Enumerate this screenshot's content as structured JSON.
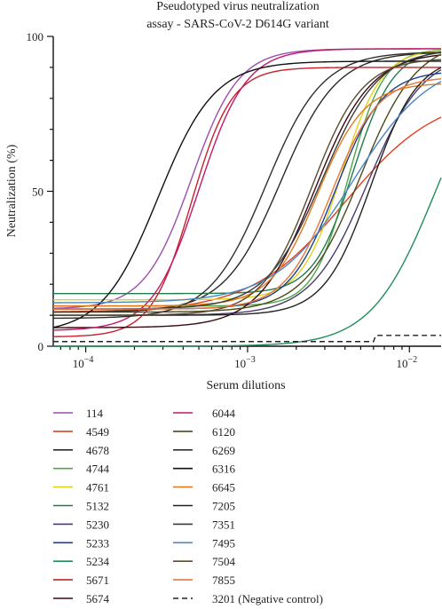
{
  "chart_data": {
    "type": "line",
    "title_lines": [
      "Pseudotyped virus neutralization",
      "assay - SARS-CoV-2 D614G variant"
    ],
    "xlabel": "Serum dilutions",
    "ylabel": "Neutralization (%)",
    "x_scale": "log",
    "xlim": [
      6.3e-05,
      0.0157
    ],
    "ylim": [
      0,
      100
    ],
    "x_ticks": [
      {
        "value": 0.0001,
        "base": "10",
        "exp": "−4"
      },
      {
        "value": 0.001,
        "base": "10",
        "exp": "−3"
      },
      {
        "value": 0.01,
        "base": "10",
        "exp": "−2"
      }
    ],
    "y_ticks": [
      {
        "value": 0,
        "label": "0"
      },
      {
        "value": 50,
        "label": "50"
      },
      {
        "value": 100,
        "label": "100"
      }
    ],
    "series": [
      {
        "name": "114",
        "color": "#9b4fb0",
        "bottom": 12,
        "top": 96,
        "ec50": 0.00045,
        "hill": 3.0
      },
      {
        "name": "4549",
        "color": "#e3401b",
        "bottom": 11,
        "top": 82,
        "ec50": 0.004,
        "hill": 1.5
      },
      {
        "name": "4678",
        "color": "#2a2a2a",
        "bottom": 11,
        "top": 95,
        "ec50": 0.0016,
        "hill": 2.5
      },
      {
        "name": "4744",
        "color": "#4da64a",
        "bottom": 13,
        "top": 96,
        "ec50": 0.0042,
        "hill": 4.0
      },
      {
        "name": "4761",
        "color": "#e0d21a",
        "bottom": 15,
        "top": 96,
        "ec50": 0.0038,
        "hill": 3.5
      },
      {
        "name": "5132",
        "color": "#207c4a",
        "bottom": 17,
        "top": 96,
        "ec50": 0.0045,
        "hill": 3.5
      },
      {
        "name": "5230",
        "color": "#4a3a6a",
        "bottom": 10,
        "top": 95,
        "ec50": 0.0055,
        "hill": 2.5
      },
      {
        "name": "5233",
        "color": "#1d3f8c",
        "bottom": 12,
        "top": 89,
        "ec50": 0.0035,
        "hill": 3.0
      },
      {
        "name": "5234",
        "color": "#1f8f5a",
        "bottom": 0,
        "top": 100,
        "ec50": 0.0145,
        "hill": 2.2
      },
      {
        "name": "5671",
        "color": "#c8202a",
        "bottom": 3,
        "top": 90,
        "ec50": 0.00045,
        "hill": 3.5
      },
      {
        "name": "5674",
        "color": "#3a0a12",
        "bottom": 6,
        "top": 95,
        "ec50": 0.0026,
        "hill": 2.5
      },
      {
        "name": "6044",
        "color": "#c2186a",
        "bottom": 5,
        "top": 96,
        "ec50": 0.0005,
        "hill": 3.0
      },
      {
        "name": "6120",
        "color": "#4a4a1a",
        "bottom": 11,
        "top": 99,
        "ec50": 0.005,
        "hill": 2.5
      },
      {
        "name": "6269",
        "color": "#2e2e2e",
        "bottom": 9,
        "top": 95,
        "ec50": 0.0013,
        "hill": 2.5
      },
      {
        "name": "6316",
        "color": "#111111",
        "bottom": 4,
        "top": 92,
        "ec50": 0.00028,
        "hill": 2.5
      },
      {
        "name": "6645",
        "color": "#e07b1f",
        "bottom": 13,
        "top": 85,
        "ec50": 0.0027,
        "hill": 3.0
      },
      {
        "name": "7205",
        "color": "#222222",
        "bottom": 10,
        "top": 94,
        "ec50": 0.0058,
        "hill": 3.0
      },
      {
        "name": "7351",
        "color": "#3a3a3a",
        "bottom": 12,
        "top": 96,
        "ec50": 0.0029,
        "hill": 2.5
      },
      {
        "name": "7495",
        "color": "#4a86c8",
        "bottom": 14,
        "top": 93,
        "ec50": 0.0045,
        "hill": 1.8
      },
      {
        "name": "7504",
        "color": "#5a4a30",
        "bottom": 10,
        "top": 93,
        "ec50": 0.0025,
        "hill": 2.8
      },
      {
        "name": "7855",
        "color": "#e8763a",
        "bottom": 12,
        "top": 87,
        "ec50": 0.0033,
        "hill": 3.0
      }
    ],
    "negative_control": {
      "name": "3201 (Negative control)",
      "color": "#222222",
      "dashed": true,
      "points": [
        [
          6.3e-05,
          1.5
        ],
        [
          0.006,
          1.5
        ],
        [
          0.0062,
          3.5
        ],
        [
          0.0157,
          3.5
        ]
      ]
    },
    "legend_position": "below"
  }
}
